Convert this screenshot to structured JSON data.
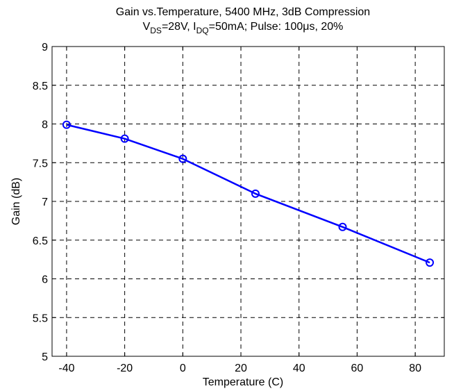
{
  "chart_data": {
    "type": "line",
    "title_line1": "Gain vs.Temperature, 5400 MHz, 3dB Compression",
    "title_line2": {
      "v": "V",
      "v_sub": "DS",
      "v_value": "=28V, ",
      "i": "I",
      "i_sub": "DQ",
      "i_value": "=50mA; Pulse: 100",
      "mu": "μ",
      "tail": "s, 20%"
    },
    "xlabel": "Temperature (C)",
    "ylabel": "Gain (dB)",
    "xlim": [
      -45,
      90
    ],
    "ylim": [
      5,
      9
    ],
    "xticks": [
      -40,
      -20,
      0,
      20,
      40,
      60,
      80
    ],
    "xtick_labels": [
      "-40",
      "-20",
      "0",
      "20",
      "40",
      "60",
      "80"
    ],
    "yticks": [
      5,
      5.5,
      6,
      6.5,
      7,
      7.5,
      8,
      8.5,
      9
    ],
    "ytick_labels": [
      "5",
      "5.5",
      "6",
      "6.5",
      "7",
      "7.5",
      "8",
      "8.5",
      "9"
    ],
    "grid": true,
    "series": [
      {
        "x": [
          -40,
          -20,
          0,
          25,
          55,
          85
        ],
        "y": [
          7.99,
          7.81,
          7.55,
          7.1,
          6.67,
          6.21
        ],
        "color": "#0000ff",
        "marker": "circle"
      }
    ]
  }
}
